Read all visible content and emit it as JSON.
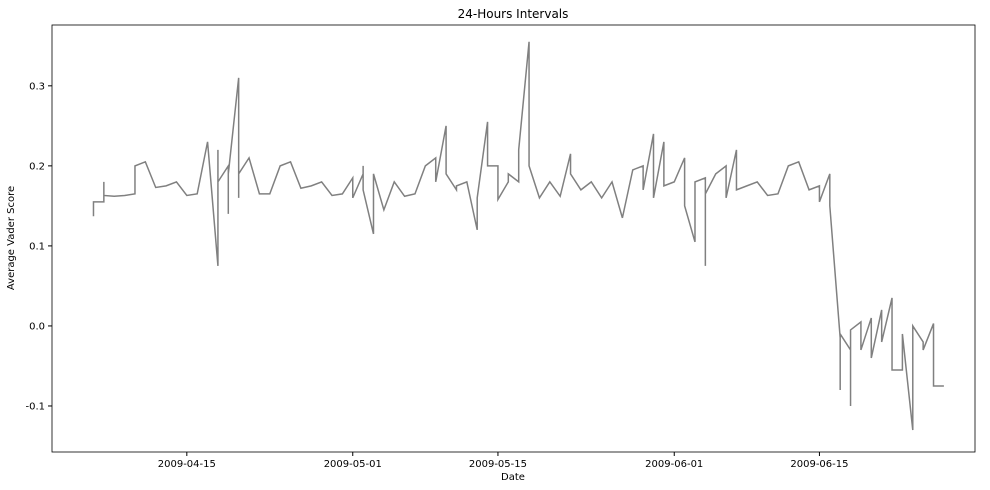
{
  "chart_data": {
    "type": "line",
    "title": "24-Hours Intervals",
    "x_label": "Date",
    "y_label": "Average Vader Score",
    "x": [
      "2009-04-06",
      "2009-04-06",
      "2009-04-07",
      "2009-04-07",
      "2009-04-07",
      "2009-04-08",
      "2009-04-09",
      "2009-04-10",
      "2009-04-10",
      "2009-04-11",
      "2009-04-12",
      "2009-04-13",
      "2009-04-14",
      "2009-04-15",
      "2009-04-16",
      "2009-04-17",
      "2009-04-18",
      "2009-04-18",
      "2009-04-18",
      "2009-04-19",
      "2009-04-19",
      "2009-04-19",
      "2009-04-20",
      "2009-04-20",
      "2009-04-20",
      "2009-04-21",
      "2009-04-22",
      "2009-04-23",
      "2009-04-24",
      "2009-04-25",
      "2009-04-26",
      "2009-04-27",
      "2009-04-28",
      "2009-04-29",
      "2009-04-30",
      "2009-05-01",
      "2009-05-01",
      "2009-05-02",
      "2009-05-02",
      "2009-05-02",
      "2009-05-03",
      "2009-05-03",
      "2009-05-03",
      "2009-05-04",
      "2009-05-05",
      "2009-05-06",
      "2009-05-07",
      "2009-05-08",
      "2009-05-09",
      "2009-05-09",
      "2009-05-10",
      "2009-05-10",
      "2009-05-11",
      "2009-05-11",
      "2009-05-12",
      "2009-05-13",
      "2009-05-13",
      "2009-05-14",
      "2009-05-14",
      "2009-05-15",
      "2009-05-15",
      "2009-05-16",
      "2009-05-16",
      "2009-05-17",
      "2009-05-17",
      "2009-05-18",
      "2009-05-18",
      "2009-05-19",
      "2009-05-20",
      "2009-05-21",
      "2009-05-22",
      "2009-05-22",
      "2009-05-23",
      "2009-05-24",
      "2009-05-25",
      "2009-05-26",
      "2009-05-27",
      "2009-05-28",
      "2009-05-29",
      "2009-05-29",
      "2009-05-30",
      "2009-05-30",
      "2009-05-31",
      "2009-05-31",
      "2009-06-01",
      "2009-06-02",
      "2009-06-02",
      "2009-06-03",
      "2009-06-03",
      "2009-06-04",
      "2009-06-04",
      "2009-06-04",
      "2009-06-05",
      "2009-06-06",
      "2009-06-06",
      "2009-06-07",
      "2009-06-07",
      "2009-06-08",
      "2009-06-09",
      "2009-06-10",
      "2009-06-11",
      "2009-06-12",
      "2009-06-13",
      "2009-06-14",
      "2009-06-15",
      "2009-06-15",
      "2009-06-16",
      "2009-06-16",
      "2009-06-17",
      "2009-06-17",
      "2009-06-17",
      "2009-06-18",
      "2009-06-18",
      "2009-06-18",
      "2009-06-19",
      "2009-06-19",
      "2009-06-20",
      "2009-06-20",
      "2009-06-21",
      "2009-06-21",
      "2009-06-22",
      "2009-06-22",
      "2009-06-23",
      "2009-06-23",
      "2009-06-24",
      "2009-06-24",
      "2009-06-25",
      "2009-06-25",
      "2009-06-26",
      "2009-06-26",
      "2009-06-27"
    ],
    "values": [
      0.137,
      0.155,
      0.155,
      0.18,
      0.163,
      0.162,
      0.163,
      0.165,
      0.2,
      0.205,
      0.173,
      0.175,
      0.18,
      0.163,
      0.165,
      0.23,
      0.075,
      0.22,
      0.18,
      0.2,
      0.14,
      0.19,
      0.31,
      0.16,
      0.19,
      0.21,
      0.165,
      0.165,
      0.2,
      0.205,
      0.172,
      0.175,
      0.18,
      0.163,
      0.165,
      0.185,
      0.16,
      0.19,
      0.2,
      0.17,
      0.115,
      0.18,
      0.19,
      0.145,
      0.18,
      0.162,
      0.165,
      0.2,
      0.21,
      0.18,
      0.25,
      0.19,
      0.17,
      0.175,
      0.18,
      0.12,
      0.16,
      0.255,
      0.2,
      0.2,
      0.158,
      0.18,
      0.19,
      0.18,
      0.22,
      0.355,
      0.2,
      0.16,
      0.18,
      0.162,
      0.215,
      0.19,
      0.17,
      0.18,
      0.16,
      0.18,
      0.135,
      0.195,
      0.2,
      0.17,
      0.24,
      0.16,
      0.23,
      0.175,
      0.18,
      0.21,
      0.15,
      0.105,
      0.18,
      0.185,
      0.075,
      0.165,
      0.19,
      0.2,
      0.16,
      0.22,
      0.17,
      0.175,
      0.18,
      0.163,
      0.165,
      0.2,
      0.205,
      0.17,
      0.175,
      0.155,
      0.19,
      0.15,
      -0.015,
      -0.08,
      -0.01,
      -0.03,
      -0.1,
      -0.005,
      0.005,
      -0.03,
      0.01,
      -0.04,
      0.02,
      -0.02,
      0.035,
      -0.055,
      -0.055,
      -0.01,
      -0.13,
      0.0,
      -0.02,
      -0.03,
      0.003,
      -0.075,
      -0.075
    ],
    "color": "#808080",
    "xlim": [
      "2009-04-02",
      "2009-06-30"
    ],
    "xticks": [
      "2009-04-15",
      "2009-05-01",
      "2009-05-15",
      "2009-06-01",
      "2009-06-15"
    ],
    "ylim": [
      -0.1575,
      0.376
    ],
    "yticks": [
      -0.1,
      {
        "value": 0,
        "label": "0.0"
      },
      0.1,
      0.2,
      0.3
    ],
    "grid": false
  }
}
